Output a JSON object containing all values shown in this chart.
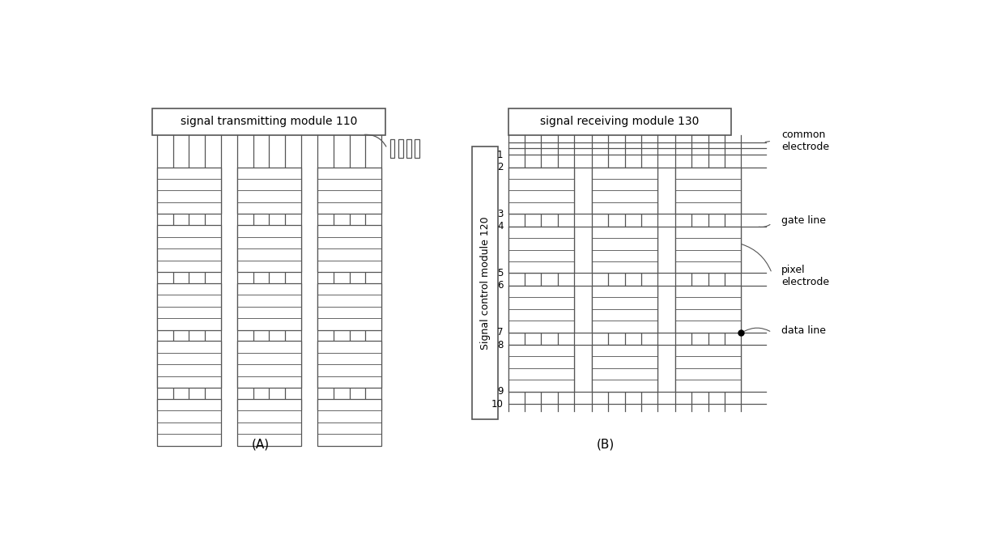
{
  "fig_width": 12.4,
  "fig_height": 6.82,
  "bg_color": "#ffffff",
  "line_color": "#555555",
  "title_A": "(A)",
  "title_B": "(B)",
  "label_tx": "signal transmitting module 110",
  "label_rx": "signal receiving module 130",
  "label_ctrl": "Signal control module 120",
  "label_common": "common\nelectrode",
  "label_gate": "gate line",
  "label_pixel": "pixel\nelectrode",
  "label_data": "data line"
}
